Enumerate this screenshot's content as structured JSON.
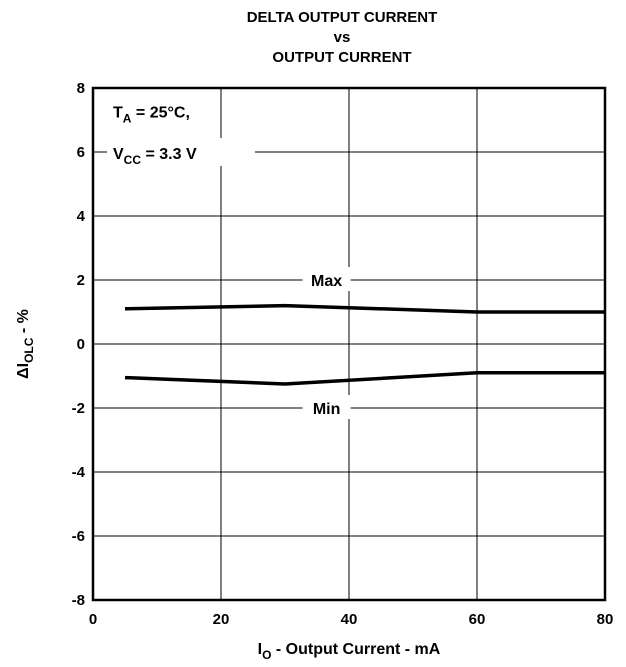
{
  "chart_data": {
    "type": "line",
    "title": [
      "DELTA OUTPUT CURRENT",
      "vs",
      "OUTPUT CURRENT"
    ],
    "xlabel": {
      "main": "I",
      "sub": "O",
      "rest": " - Output Current - mA"
    },
    "ylabel": {
      "main": "ΔI",
      "sub": "OLC",
      "rest": " - %"
    },
    "xlim": [
      0,
      80
    ],
    "ylim": [
      -8,
      8
    ],
    "xticks": [
      0,
      20,
      40,
      60,
      80
    ],
    "yticks": [
      -8,
      -6,
      -4,
      -2,
      0,
      2,
      4,
      6,
      8
    ],
    "grid": true,
    "series": [
      {
        "name": "Max",
        "x": [
          5,
          30,
          60,
          80
        ],
        "y": [
          1.1,
          1.2,
          1.0,
          1.0
        ]
      },
      {
        "name": "Min",
        "x": [
          5,
          30,
          60,
          80
        ],
        "y": [
          -1.05,
          -1.25,
          -0.9,
          -0.9
        ]
      }
    ],
    "conditions": {
      "line1": {
        "main": "T",
        "sub": "A",
        "rest": " = 25°C,"
      },
      "line2": {
        "main": "V",
        "sub": "CC",
        "rest": " = 3.3 V"
      }
    }
  }
}
